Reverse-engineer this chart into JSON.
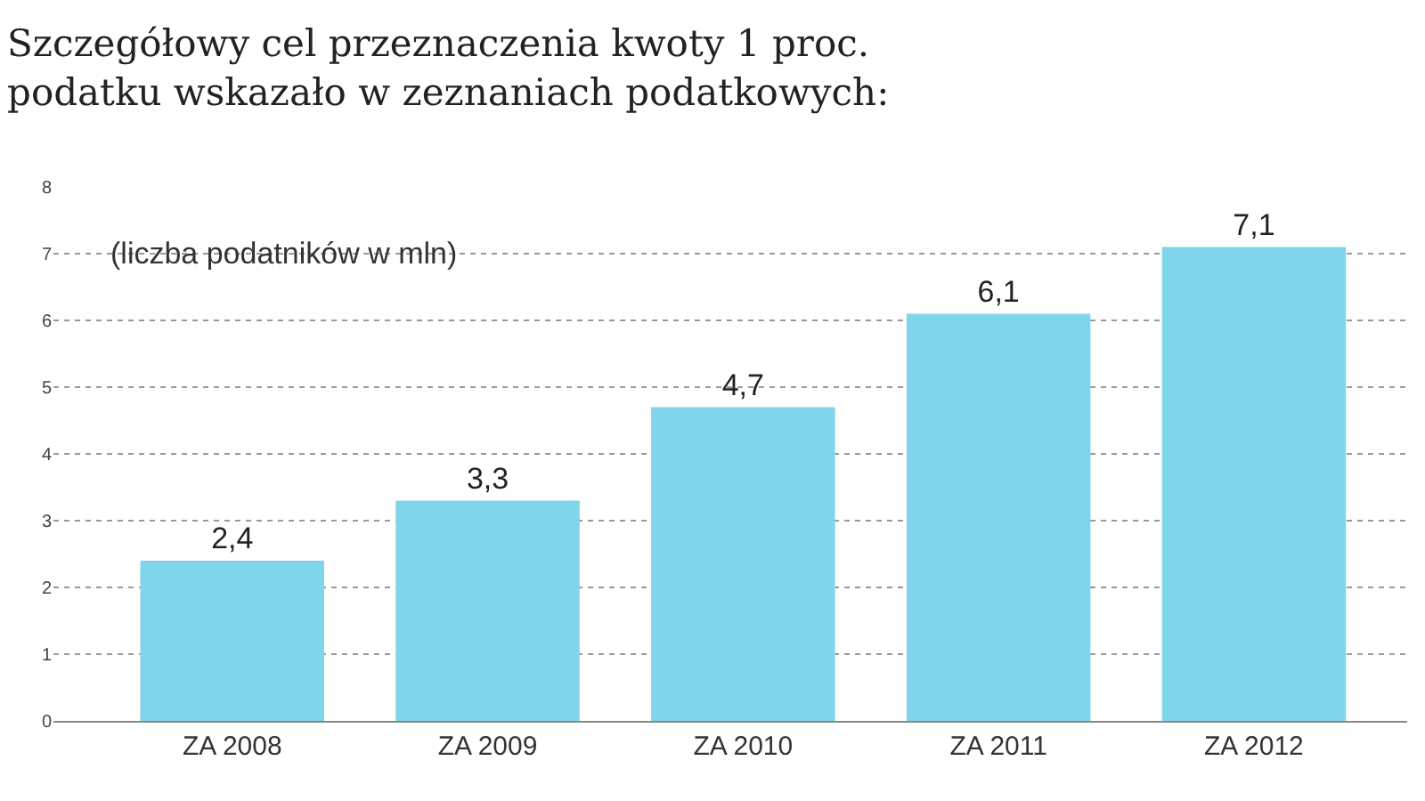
{
  "chart_data": {
    "type": "bar",
    "title": "Szczegółowy cel przeznaczenia kwoty 1 proc.\npodatku wskazało w zeznaniach podatkowych:",
    "annotations": [
      "(liczba podatników w mln)"
    ],
    "categories": [
      "ZA 2008",
      "ZA 2009",
      "ZA 2010",
      "ZA 2011",
      "ZA 2012"
    ],
    "values": [
      2.4,
      3.3,
      4.7,
      6.1,
      7.1
    ],
    "color": "#7fd6ea",
    "ylim": [
      0,
      8
    ],
    "yticks": [
      0,
      1,
      2,
      3,
      4,
      5,
      6,
      7,
      8
    ],
    "value_labels": [
      "2,4",
      "3,3",
      "4,7",
      "6,1",
      "7,1"
    ],
    "grid": "y"
  }
}
